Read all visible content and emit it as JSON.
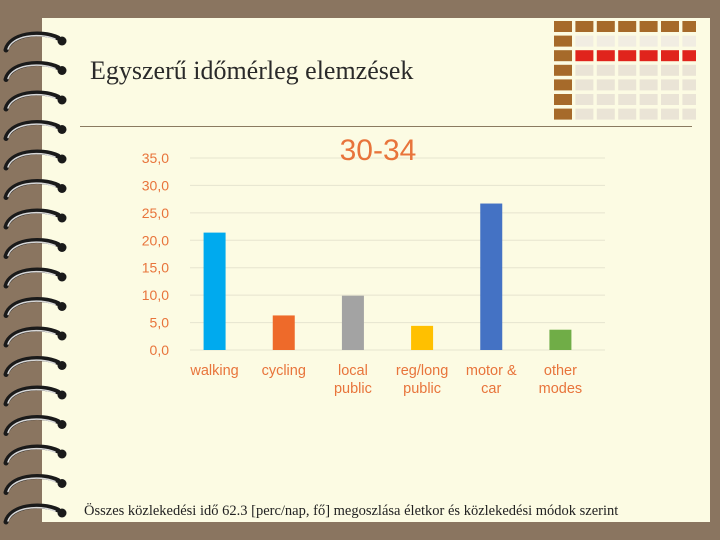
{
  "slide": {
    "title": "Egyszerű időmérleg elemzések",
    "footer": "Összes közlekedési idő 62.3 [perc/nap, fő] megoszlása életkor és közlekedési módok szerint"
  },
  "chart_data": {
    "type": "bar",
    "title": "30-34",
    "categories": [
      [
        "walking"
      ],
      [
        "cycling"
      ],
      [
        "local",
        "public"
      ],
      [
        "reg/long",
        "public"
      ],
      [
        "motor &",
        "car"
      ],
      [
        "other",
        "modes"
      ]
    ],
    "values": [
      21.4,
      6.3,
      9.9,
      4.4,
      26.7,
      3.7
    ],
    "colors": [
      "#00aaee",
      "#ee6a2a",
      "#a3a3a3",
      "#ffc000",
      "#4472c4",
      "#70ad47"
    ],
    "ylim": [
      0,
      35
    ],
    "yticks": [
      "0,0",
      "5,0",
      "10,0",
      "15,0",
      "20,0",
      "25,0",
      "30,0",
      "35,0"
    ],
    "grid": true,
    "xlabel": "",
    "ylabel": ""
  },
  "colors": {
    "background": "#fcfbe3",
    "frame": "#8a7560",
    "deco_brown": "#a66a2a",
    "deco_red": "#e0241c"
  }
}
